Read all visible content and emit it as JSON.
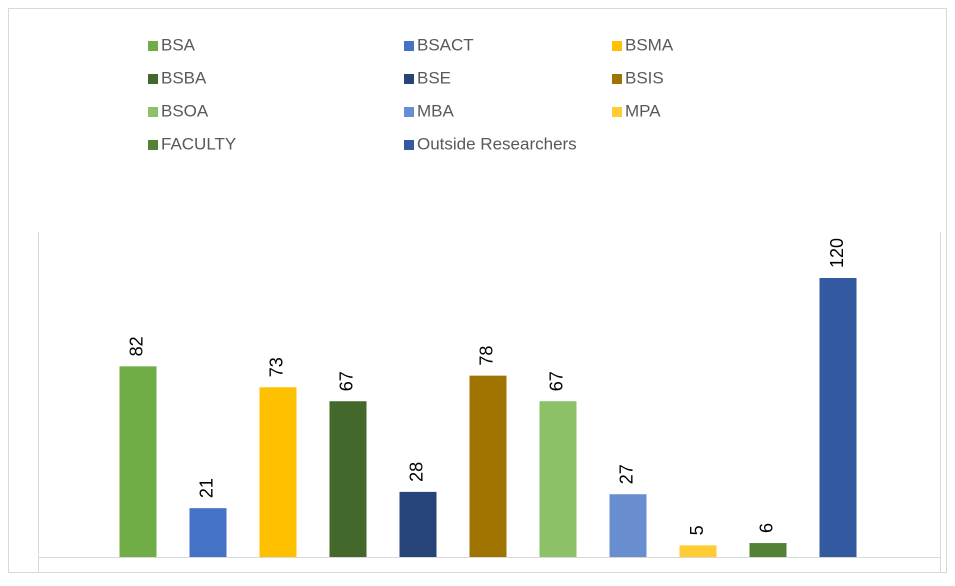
{
  "chart_data": {
    "type": "bar",
    "legend": "top",
    "data_labels": true,
    "series": [
      {
        "name": "BSA",
        "color": "#70ad47",
        "values": [
          82
        ]
      },
      {
        "name": "BSACT",
        "color": "#4472c4",
        "values": [
          21
        ]
      },
      {
        "name": "BSMA",
        "color": "#ffc000",
        "values": [
          73
        ]
      },
      {
        "name": "BSBA",
        "color": "#43682b",
        "values": [
          67
        ]
      },
      {
        "name": "BSE",
        "color": "#264478",
        "values": [
          28
        ]
      },
      {
        "name": "BSIS",
        "color": "#9e7300",
        "values": [
          78
        ]
      },
      {
        "name": "BSOA",
        "color": "#8cc168",
        "values": [
          67
        ]
      },
      {
        "name": "MBA",
        "color": "#698ed0",
        "values": [
          27
        ]
      },
      {
        "name": "MPA",
        "color": "#ffcd33",
        "values": [
          5
        ]
      },
      {
        "name": "FACULTY",
        "color": "#548235",
        "values": [
          6
        ]
      },
      {
        "name": "Outside Researchers",
        "color": "#335aa1",
        "values": [
          120
        ]
      }
    ]
  }
}
